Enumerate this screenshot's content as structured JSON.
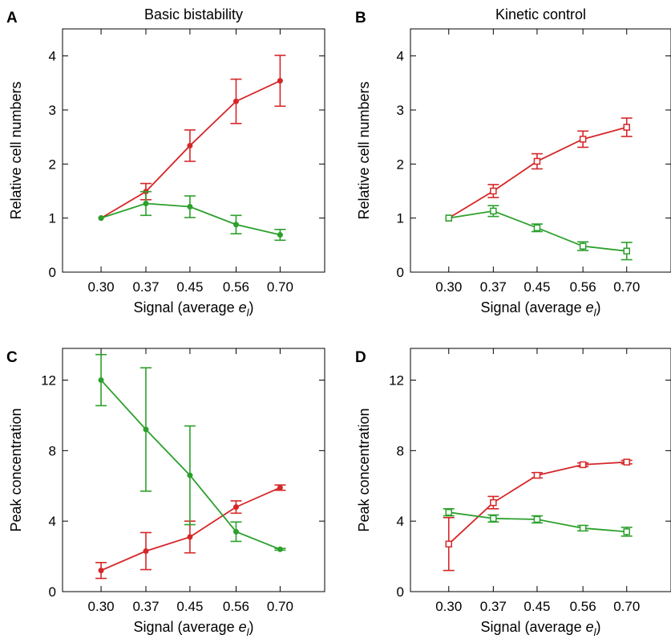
{
  "colors": {
    "red": "#d62728",
    "green": "#2ca02c",
    "axis": "#000000"
  },
  "chart_data": [
    {
      "panel": "A",
      "type": "line",
      "title": "Basic bistability",
      "ylabel": "Relative cell numbers",
      "xlabel_main": "Signal (average ",
      "xlabel_var": "e",
      "xlabel_sub": "l",
      "xlabel_end": ")",
      "categories": [
        "0.30",
        "0.37",
        "0.45",
        "0.56",
        "0.70"
      ],
      "ylim": [
        0,
        4.5
      ],
      "yticks": [
        "0",
        "1",
        "2",
        "3",
        "4"
      ],
      "marker": "filled-dot",
      "series": [
        {
          "color": "red",
          "values": [
            1.0,
            1.49,
            2.34,
            3.16,
            3.54
          ],
          "err": [
            0.0,
            0.15,
            0.29,
            0.41,
            0.47
          ]
        },
        {
          "color": "green",
          "values": [
            1.0,
            1.27,
            1.21,
            0.88,
            0.69
          ],
          "err": [
            0.0,
            0.22,
            0.2,
            0.17,
            0.1
          ]
        }
      ]
    },
    {
      "panel": "B",
      "type": "line",
      "title": "Kinetic control",
      "ylabel": "Relative cell numbers",
      "xlabel_main": "Signal (average ",
      "xlabel_var": "e",
      "xlabel_sub": "l",
      "xlabel_end": ")",
      "categories": [
        "0.30",
        "0.37",
        "0.45",
        "0.56",
        "0.70"
      ],
      "ylim": [
        0,
        4.5
      ],
      "yticks": [
        "0",
        "1",
        "2",
        "3",
        "4"
      ],
      "marker": "open-square",
      "series": [
        {
          "color": "red",
          "values": [
            1.0,
            1.5,
            2.05,
            2.46,
            2.68
          ],
          "err": [
            0.0,
            0.12,
            0.14,
            0.15,
            0.17
          ]
        },
        {
          "color": "green",
          "values": [
            1.0,
            1.13,
            0.82,
            0.48,
            0.39
          ],
          "err": [
            0.0,
            0.1,
            0.07,
            0.08,
            0.16
          ]
        }
      ]
    },
    {
      "panel": "C",
      "type": "line",
      "title": "",
      "ylabel": "Peak concentration",
      "xlabel_main": "Signal (average ",
      "xlabel_var": "e",
      "xlabel_sub": "l",
      "xlabel_end": ")",
      "categories": [
        "0.30",
        "0.37",
        "0.45",
        "0.56",
        "0.70"
      ],
      "ylim": [
        0,
        13.8
      ],
      "yticks": [
        "0",
        "4",
        "8",
        "12"
      ],
      "marker": "filled-dot",
      "series": [
        {
          "color": "red",
          "values": [
            1.2,
            2.3,
            3.1,
            4.8,
            5.9
          ],
          "err": [
            0.45,
            1.05,
            0.9,
            0.35,
            0.15
          ]
        },
        {
          "color": "green",
          "values": [
            12.0,
            9.2,
            6.6,
            3.4,
            2.4
          ],
          "err": [
            1.45,
            3.5,
            2.8,
            0.55,
            0.05
          ]
        }
      ]
    },
    {
      "panel": "D",
      "type": "line",
      "title": "",
      "ylabel": "Peak concentration",
      "xlabel_main": "Signal (average ",
      "xlabel_var": "e",
      "xlabel_sub": "l",
      "xlabel_end": ")",
      "categories": [
        "0.30",
        "0.37",
        "0.45",
        "0.56",
        "0.70"
      ],
      "ylim": [
        0,
        13.8
      ],
      "yticks": [
        "0",
        "4",
        "8",
        "12"
      ],
      "marker": "open-square",
      "series": [
        {
          "color": "red",
          "values": [
            2.7,
            5.05,
            6.6,
            7.2,
            7.35
          ],
          "err": [
            1.5,
            0.35,
            0.15,
            0.1,
            0.1
          ]
        },
        {
          "color": "green",
          "values": [
            4.5,
            4.15,
            4.1,
            3.6,
            3.4
          ],
          "err": [
            0.2,
            0.2,
            0.2,
            0.15,
            0.25
          ]
        }
      ]
    }
  ]
}
